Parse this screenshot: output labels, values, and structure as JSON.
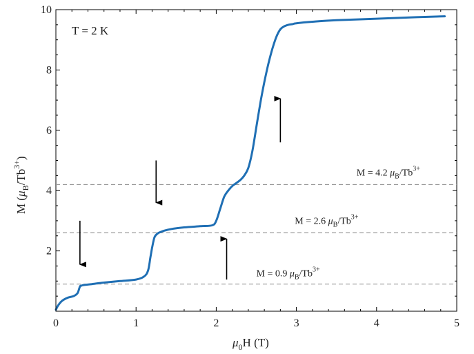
{
  "chart_data": {
    "type": "line",
    "title": "",
    "annotation": "T = 2 K",
    "xlabel": {
      "mu": "μ",
      "sub": "0",
      "rest": "H (T)"
    },
    "ylabel": {
      "pre": "M (",
      "mu": "μ",
      "sub": "B",
      "mid": "/Tb",
      "sup": "3+",
      "post": ")"
    },
    "xlim": [
      0,
      5
    ],
    "ylim": [
      0,
      10
    ],
    "xticks": [
      0,
      1,
      2,
      3,
      4,
      5
    ],
    "yticks": [
      2,
      4,
      6,
      8,
      10
    ],
    "grid": false,
    "series": [
      {
        "color": "#1f6fb4",
        "x": [
          0,
          0.03,
          0.08,
          0.15,
          0.22,
          0.27,
          0.3,
          0.32,
          0.35,
          0.45,
          0.6,
          0.8,
          1.0,
          1.1,
          1.15,
          1.18,
          1.2,
          1.23,
          1.27,
          1.3,
          1.35,
          1.45,
          1.6,
          1.8,
          1.95,
          2.0,
          2.05,
          2.1,
          2.15,
          2.2,
          2.25,
          2.3,
          2.35,
          2.4,
          2.45,
          2.5,
          2.55,
          2.6,
          2.65,
          2.7,
          2.75,
          2.8,
          2.85,
          2.9,
          2.95,
          3.0,
          3.2,
          3.5,
          4.0,
          4.5,
          4.85
        ],
        "y": [
          0.05,
          0.2,
          0.35,
          0.45,
          0.5,
          0.6,
          0.82,
          0.85,
          0.87,
          0.9,
          0.95,
          1.0,
          1.05,
          1.15,
          1.35,
          1.8,
          2.1,
          2.45,
          2.58,
          2.62,
          2.67,
          2.73,
          2.78,
          2.82,
          2.85,
          3.0,
          3.4,
          3.8,
          4.0,
          4.15,
          4.25,
          4.35,
          4.5,
          4.75,
          5.3,
          6.1,
          6.9,
          7.6,
          8.2,
          8.7,
          9.1,
          9.35,
          9.45,
          9.5,
          9.52,
          9.55,
          9.6,
          9.65,
          9.7,
          9.75,
          9.78
        ]
      }
    ],
    "reference_lines": [
      {
        "y": 4.2,
        "label": {
          "pre": "M = 4.2 ",
          "mu": "μ",
          "sub": "B",
          "mid": "/Tb",
          "sup": "3+"
        },
        "label_x": 3.75,
        "label_y": 4.5
      },
      {
        "y": 2.6,
        "label": {
          "pre": "M = 2.6 ",
          "mu": "μ",
          "sub": "B",
          "mid": "/Tb",
          "sup": "3+"
        },
        "label_x": 2.98,
        "label_y": 2.9
      },
      {
        "y": 0.9,
        "label": {
          "pre": "M = 0.9 ",
          "mu": "μ",
          "sub": "B",
          "mid": "/Tb",
          "sup": "3+"
        },
        "label_x": 2.5,
        "label_y": 1.15
      }
    ],
    "arrows": [
      {
        "direction": "down",
        "x": 0.3,
        "y_from": 3.0,
        "y_to": 1.55
      },
      {
        "direction": "down",
        "x": 1.25,
        "y_from": 5.0,
        "y_to": 3.6
      },
      {
        "direction": "up",
        "x": 2.13,
        "y_from": 1.05,
        "y_to": 2.4
      },
      {
        "direction": "up",
        "x": 2.8,
        "y_from": 5.6,
        "y_to": 7.05
      }
    ]
  }
}
